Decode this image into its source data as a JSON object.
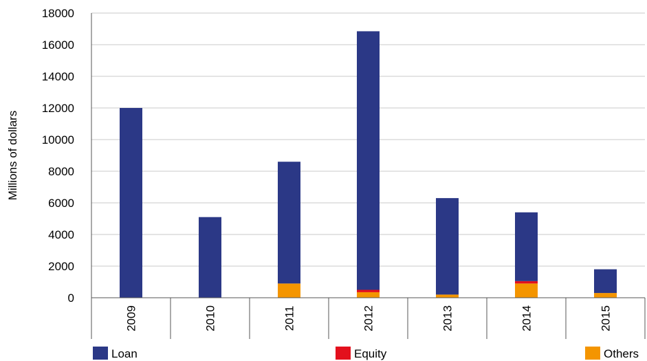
{
  "chart_data": {
    "type": "bar",
    "stacked": true,
    "categories": [
      "2009",
      "2010",
      "2011",
      "2012",
      "2013",
      "2014",
      "2015"
    ],
    "series": [
      {
        "name": "Loan",
        "color": "#2b3886",
        "values": [
          12000,
          5100,
          7700,
          16350,
          6100,
          4350,
          1500
        ]
      },
      {
        "name": "Equity",
        "color": "#e3101d",
        "values": [
          0,
          0,
          0,
          150,
          0,
          150,
          0
        ]
      },
      {
        "name": "Others",
        "color": "#f49500",
        "values": [
          0,
          0,
          900,
          350,
          200,
          900,
          300
        ]
      }
    ],
    "ylabel": "Millions of dollars",
    "ylim": [
      0,
      18000
    ],
    "yticks": [
      0,
      2000,
      4000,
      6000,
      8000,
      10000,
      12000,
      14000,
      16000,
      18000
    ],
    "grid": true,
    "legend_position": "bottom"
  }
}
